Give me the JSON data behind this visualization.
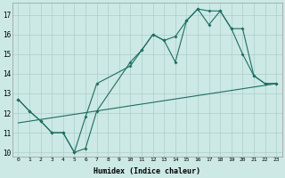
{
  "xlabel": "Humidex (Indice chaleur)",
  "xlim": [
    -0.5,
    23.5
  ],
  "ylim": [
    9.8,
    17.6
  ],
  "yticks": [
    10,
    11,
    12,
    13,
    14,
    15,
    16,
    17
  ],
  "xticks": [
    0,
    1,
    2,
    3,
    4,
    5,
    6,
    7,
    8,
    9,
    10,
    11,
    12,
    13,
    14,
    15,
    16,
    17,
    18,
    19,
    20,
    21,
    22,
    23
  ],
  "bg_color": "#cce9e5",
  "grid_color": "#aacfcc",
  "line_color": "#1e6e63",
  "line1_x": [
    0,
    1,
    2,
    3,
    4,
    5,
    6,
    7,
    10,
    11,
    12,
    13,
    14,
    15,
    16,
    17,
    18,
    19,
    20,
    21,
    22,
    23
  ],
  "line1_y": [
    12.7,
    12.1,
    11.6,
    11.0,
    11.0,
    10.0,
    10.2,
    12.1,
    14.6,
    15.2,
    16.0,
    15.7,
    14.6,
    16.7,
    17.3,
    16.5,
    17.2,
    16.3,
    15.0,
    13.9,
    13.5,
    13.5
  ],
  "line2_x": [
    0,
    1,
    2,
    3,
    4,
    5,
    6,
    7,
    10,
    11,
    12,
    13,
    14,
    15,
    16,
    17,
    18,
    19,
    20,
    21,
    22,
    23
  ],
  "line2_y": [
    12.7,
    12.1,
    11.6,
    11.0,
    11.0,
    10.0,
    11.8,
    13.5,
    14.4,
    15.2,
    16.0,
    15.7,
    15.9,
    16.7,
    17.3,
    17.2,
    17.2,
    16.3,
    16.3,
    13.9,
    13.5,
    13.5
  ],
  "line3_x": [
    0,
    23
  ],
  "line3_y": [
    11.5,
    13.5
  ]
}
